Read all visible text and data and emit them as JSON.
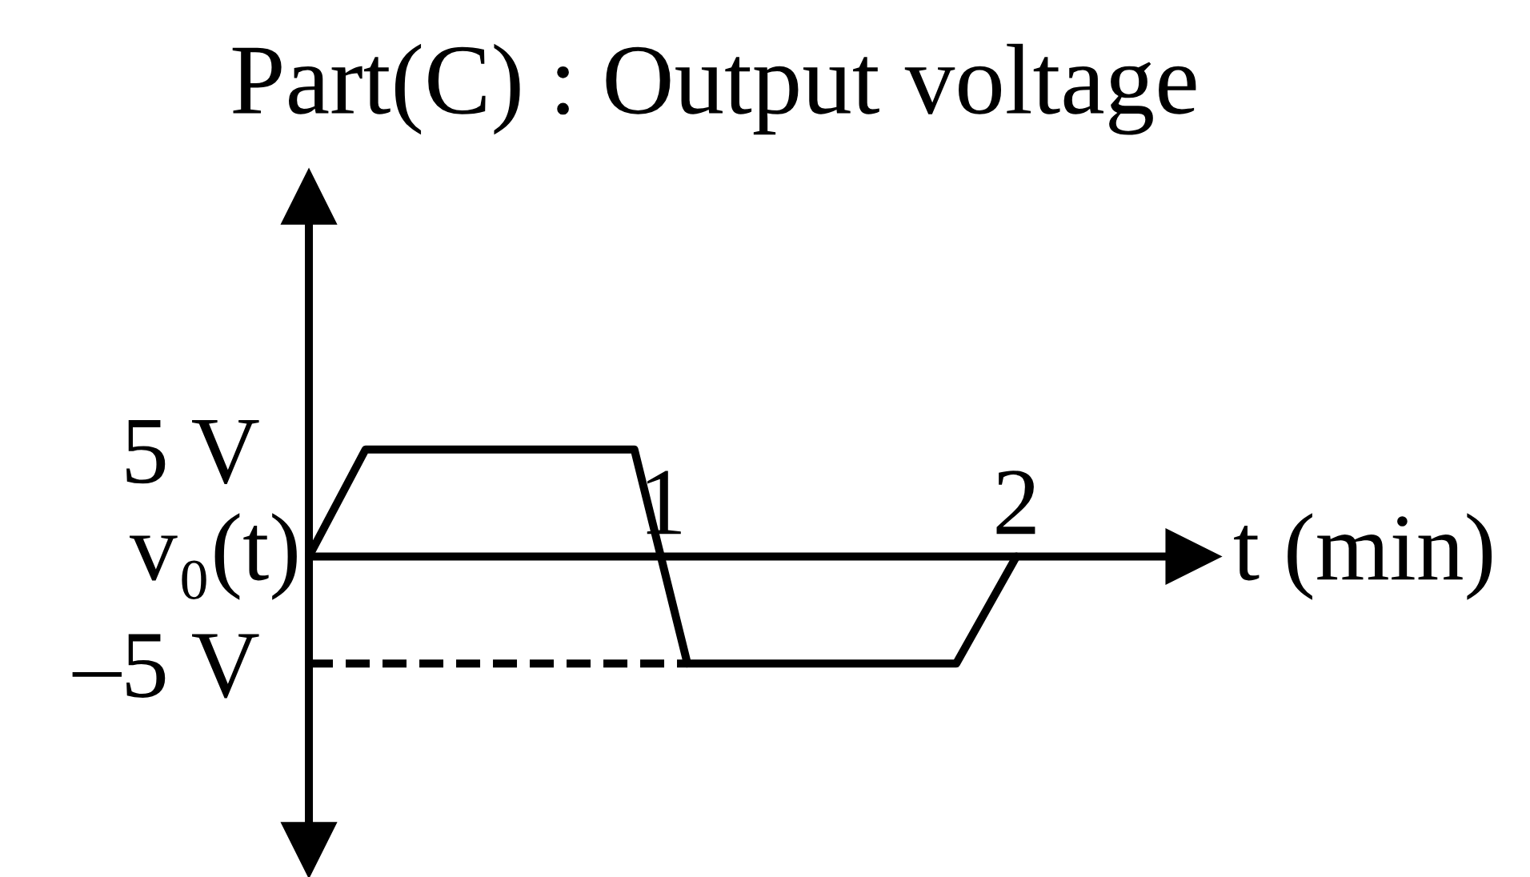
{
  "chart_data": {
    "type": "line",
    "title": "Part(C) : Output voltage",
    "xlabel": "t (min)",
    "ylabel": "v₀(t)",
    "series": [
      {
        "color": "#000000",
        "x": [
          0,
          0.16,
          0.92,
          1.07,
          1.83,
          2.0
        ],
        "values": [
          0,
          5,
          5,
          -5,
          -5,
          0
        ]
      },
      {
        "color": "#000000",
        "x": [
          0,
          1.07
        ],
        "values": [
          -5,
          -5
        ],
        "line_style": "dashed"
      }
    ],
    "xlim": [
      0,
      2.5
    ],
    "ylim": [
      -13.7,
      16.8
    ],
    "xticks": [
      1,
      2
    ],
    "yticks": [
      {
        "value": 5,
        "label": "5 V"
      },
      {
        "value": -5,
        "label": "–5 V"
      }
    ],
    "grid": false,
    "marker": "none",
    "line_style": "solid"
  }
}
